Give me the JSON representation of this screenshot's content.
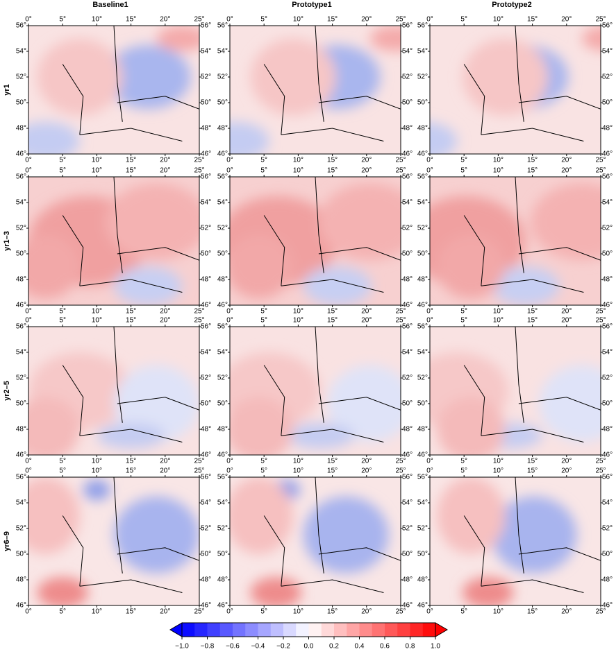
{
  "columns": [
    "Baseline1",
    "Prototype1",
    "Prototype2"
  ],
  "rows": [
    "yr1",
    "yr1–3",
    "yr2–5",
    "yr6–9"
  ],
  "lon_ticks": [
    {
      "value": 0,
      "label": "0°"
    },
    {
      "value": 5,
      "label": "5°"
    },
    {
      "value": 10,
      "label": "10°"
    },
    {
      "value": 15,
      "label": "15°"
    },
    {
      "value": 20,
      "label": "20°"
    },
    {
      "value": 25,
      "label": "25°"
    }
  ],
  "lat_ticks": [
    {
      "value": 46,
      "label": "46°"
    },
    {
      "value": 48,
      "label": "48°"
    },
    {
      "value": 50,
      "label": "50°"
    },
    {
      "value": 52,
      "label": "52°"
    },
    {
      "value": 54,
      "label": "54°"
    },
    {
      "value": 56,
      "label": "56°"
    }
  ],
  "colorbar": {
    "lim": [
      -1,
      1
    ],
    "ticks": [
      {
        "value": -1,
        "label": "−1.0"
      },
      {
        "value": -0.8,
        "label": "−0.8"
      },
      {
        "value": -0.6,
        "label": "−0.6"
      },
      {
        "value": -0.4,
        "label": "−0.4"
      },
      {
        "value": -0.2,
        "label": "−0.2"
      },
      {
        "value": 0,
        "label": "0.0"
      },
      {
        "value": 0.2,
        "label": "0.2"
      },
      {
        "value": 0.4,
        "label": "0.4"
      },
      {
        "value": 0.6,
        "label": "0.6"
      },
      {
        "value": 0.8,
        "label": "0.8"
      },
      {
        "value": 1,
        "label": "1.0"
      }
    ]
  }
}
